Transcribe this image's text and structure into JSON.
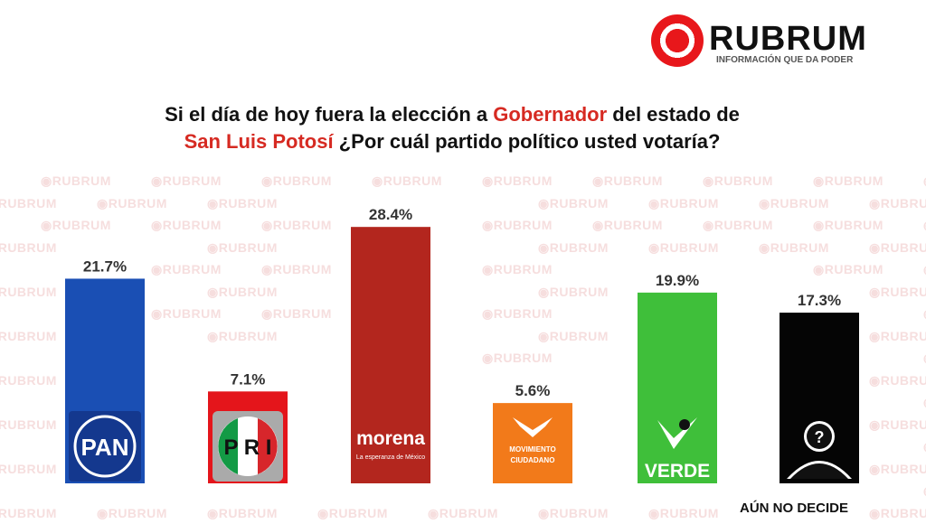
{
  "logo": {
    "name": "RUBRUM",
    "tagline": "INFORMACIÓN QUE DA PODER"
  },
  "title": {
    "part1": "Si el día de hoy fuera la elección a ",
    "highlight1": "Gobernador",
    "part2": " del estado de",
    "highlight2": "San Luis Potosí",
    "part3": " ¿Por cuál partido político usted votaría?"
  },
  "watermark": "RUBRUM",
  "chart_data": {
    "type": "bar",
    "title": "Si el día de hoy fuera la elección a Gobernador del estado de San Luis Potosí ¿Por cuál partido político usted votaría?",
    "categories": [
      "PAN",
      "PRI",
      "morena",
      "MOVIMIENTO CIUDADANO",
      "VERDE",
      "AÚN NO DECIDE"
    ],
    "values": [
      21.7,
      7.1,
      28.4,
      5.6,
      19.9,
      17.3
    ],
    "labels": [
      "21.7%",
      "7.1%",
      "28.4%",
      "5.6%",
      "19.9%",
      "17.3%"
    ],
    "colors": [
      "#1a4fb4",
      "#e4151b",
      "#b3261e",
      "#f27a1a",
      "#3fbf3a",
      "#050505"
    ],
    "unit": "%",
    "grid": false,
    "logo_text": [
      "PAN",
      "PRI",
      "morena",
      "MOVIMIENTO CIUDADANO",
      "VERDE",
      "?"
    ],
    "morena_sub": "La esperanza de México"
  },
  "footer_label": "AÚN NO DECIDE"
}
